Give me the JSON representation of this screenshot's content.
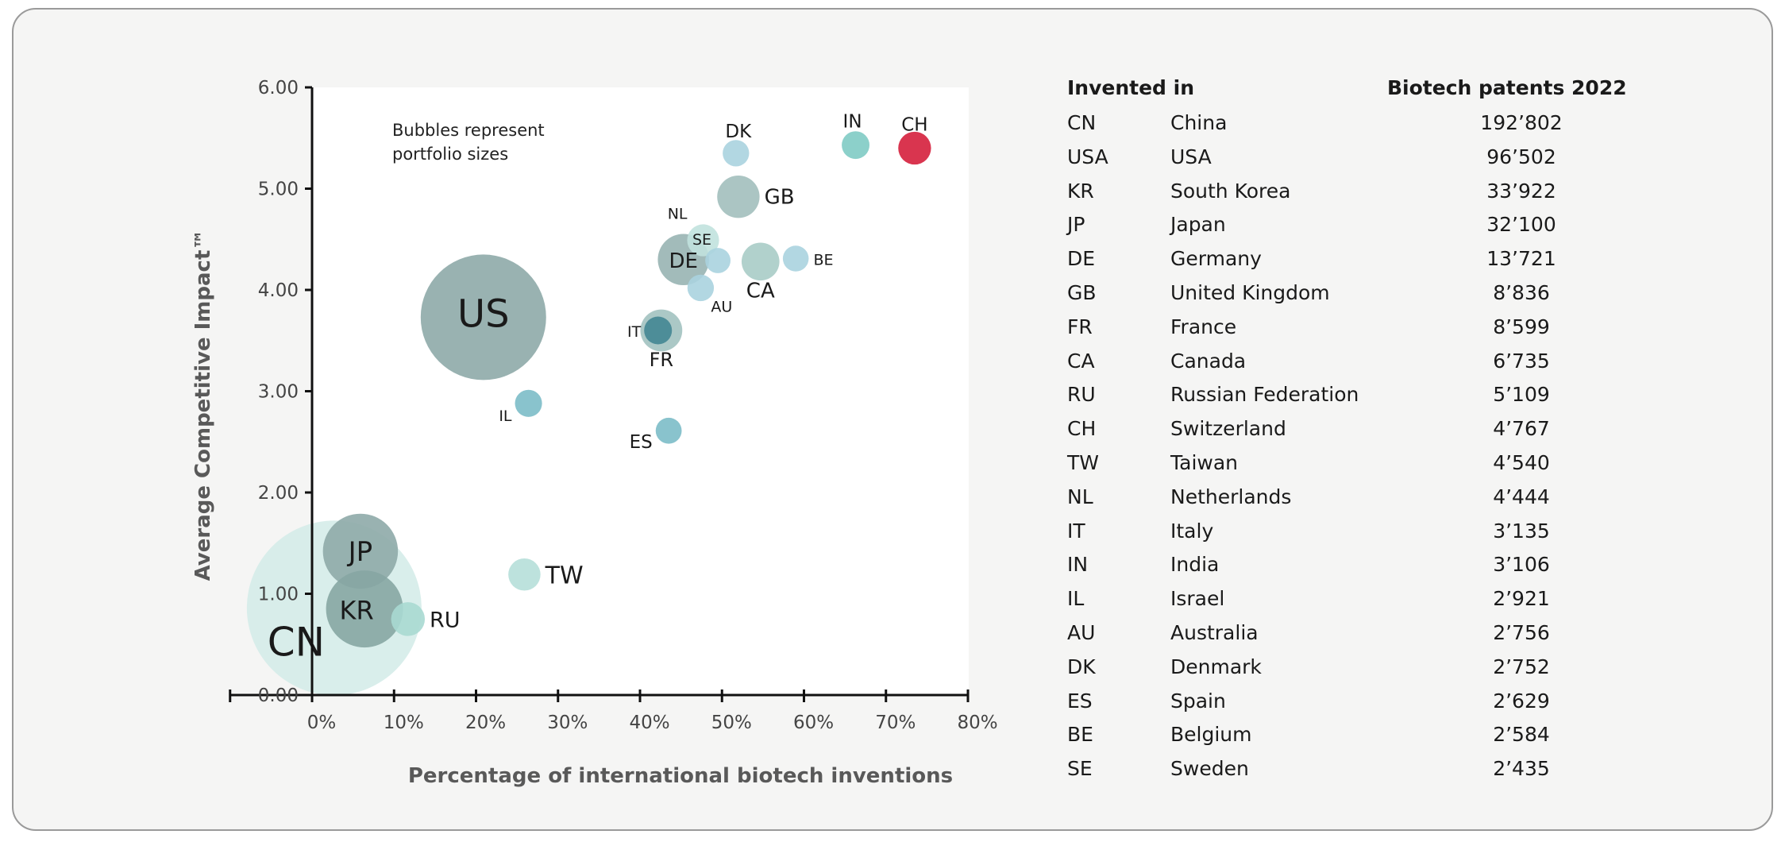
{
  "chart_data": {
    "type": "scatter",
    "subtype": "bubble",
    "xlabel": "Percentage of international biotech inventions",
    "ylabel": "Average Competitive Impact™",
    "annotation": [
      "Bubbles represent",
      "portfolio sizes"
    ],
    "xlim": [
      -10,
      80
    ],
    "ylim": [
      0,
      6
    ],
    "x_ticks": [
      "0%",
      "10%",
      "20%",
      "30%",
      "40%",
      "50%",
      "60%",
      "70%",
      "80%"
    ],
    "y_ticks": [
      "0.00",
      "1.00",
      "2.00",
      "3.00",
      "4.00",
      "5.00",
      "6.00"
    ],
    "grid": false,
    "points": [
      {
        "label": "CN",
        "x": 2.7,
        "y": 0.86,
        "size": 192802,
        "color": "#d2ebe8"
      },
      {
        "label": "US",
        "x": 20.9,
        "y": 3.73,
        "size": 96502,
        "color": "#8eaaa8"
      },
      {
        "label": "JP",
        "x": 5.9,
        "y": 1.42,
        "size": 32100,
        "color": "#8eaaa8"
      },
      {
        "label": "KR",
        "x": 6.4,
        "y": 0.85,
        "size": 33922,
        "color": "#86a6a3"
      },
      {
        "label": "RU",
        "x": 11.7,
        "y": 0.75,
        "size": 5109,
        "color": "#a8d9d2"
      },
      {
        "label": "TW",
        "x": 25.9,
        "y": 1.19,
        "size": 4540,
        "color": "#b6dfd9"
      },
      {
        "label": "IL",
        "x": 26.4,
        "y": 2.88,
        "size": 2921,
        "color": "#7cbcc8"
      },
      {
        "label": "ES",
        "x": 43.5,
        "y": 2.61,
        "size": 2629,
        "color": "#7cbcc8"
      },
      {
        "label": "FR",
        "x": 42.6,
        "y": 3.6,
        "size": 8599,
        "color": "#a2c2c0"
      },
      {
        "label": "IT",
        "x": 42.2,
        "y": 3.6,
        "size": 3135,
        "color": "#428692"
      },
      {
        "label": "DE",
        "x": 45.3,
        "y": 4.3,
        "size": 13721,
        "color": "#98b4b2"
      },
      {
        "label": "NL",
        "x": 47.7,
        "y": 4.49,
        "size": 4444,
        "color": "#c1e2de"
      },
      {
        "label": "SE",
        "x": 49.5,
        "y": 4.29,
        "size": 2435,
        "color": "#aad3df"
      },
      {
        "label": "AU",
        "x": 47.4,
        "y": 4.02,
        "size": 2756,
        "color": "#aad3df"
      },
      {
        "label": "CA",
        "x": 54.7,
        "y": 4.28,
        "size": 6735,
        "color": "#a9ccc7"
      },
      {
        "label": "BE",
        "x": 59.0,
        "y": 4.31,
        "size": 2584,
        "color": "#aad3df"
      },
      {
        "label": "GB",
        "x": 52.0,
        "y": 4.92,
        "size": 8836,
        "color": "#a2bfbd"
      },
      {
        "label": "DK",
        "x": 51.7,
        "y": 5.35,
        "size": 2752,
        "color": "#aad3df"
      },
      {
        "label": "IN",
        "x": 66.3,
        "y": 5.43,
        "size": 3106,
        "color": "#7fcbc4"
      },
      {
        "label": "CH",
        "x": 73.5,
        "y": 5.4,
        "size": 4767,
        "color": "#d51f3c"
      }
    ]
  },
  "table": {
    "header_left": "Invented in",
    "header_right": "Biotech patents 2022",
    "rows": [
      {
        "code": "CN",
        "name": "China",
        "value": "192’802"
      },
      {
        "code": "USA",
        "name": "USA",
        "value": "96’502"
      },
      {
        "code": "KR",
        "name": "South Korea",
        "value": "33’922"
      },
      {
        "code": "JP",
        "name": "Japan",
        "value": "32’100"
      },
      {
        "code": "DE",
        "name": "Germany",
        "value": "13’721"
      },
      {
        "code": "GB",
        "name": "United Kingdom",
        "value": "8’836"
      },
      {
        "code": "FR",
        "name": "France",
        "value": "8’599"
      },
      {
        "code": "CA",
        "name": "Canada",
        "value": "6’735"
      },
      {
        "code": "RU",
        "name": "Russian Federation",
        "value": "5’109"
      },
      {
        "code": "CH",
        "name": "Switzerland",
        "value": "4’767"
      },
      {
        "code": "TW",
        "name": "Taiwan",
        "value": "4’540"
      },
      {
        "code": "NL",
        "name": "Netherlands",
        "value": "4’444"
      },
      {
        "code": "IT",
        "name": "Italy",
        "value": "3’135"
      },
      {
        "code": "IN",
        "name": "India",
        "value": "3’106"
      },
      {
        "code": "IL",
        "name": "Israel",
        "value": "2’921"
      },
      {
        "code": "AU",
        "name": "Australia",
        "value": "2’756"
      },
      {
        "code": "DK",
        "name": "Denmark",
        "value": "2’752"
      },
      {
        "code": "ES",
        "name": "Spain",
        "value": "2’629"
      },
      {
        "code": "BE",
        "name": "Belgium",
        "value": "2’584"
      },
      {
        "code": "SE",
        "name": "Sweden",
        "value": "2’435"
      }
    ]
  }
}
